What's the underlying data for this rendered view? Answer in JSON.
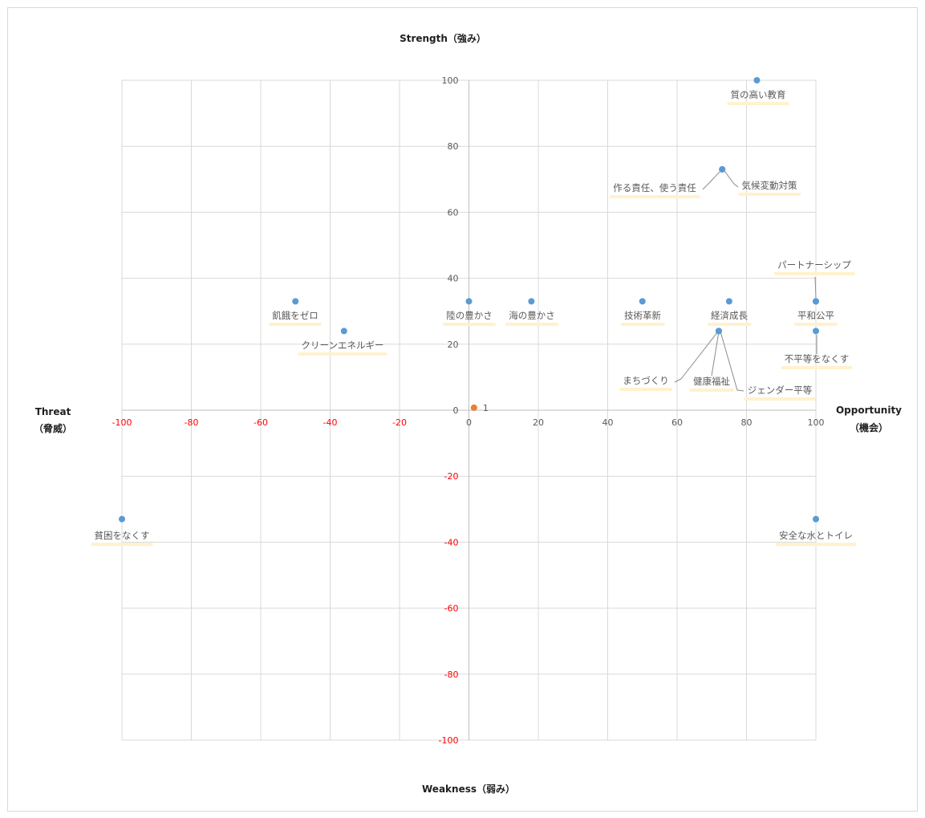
{
  "chart_data": {
    "type": "scatter",
    "axis_titles": {
      "top": "Strength（強み）",
      "bottom": "Weakness（弱み）",
      "left_line1": "Threat",
      "left_line2": "（脅威）",
      "right_line1": "Opportunity",
      "right_line2": "（機会）"
    },
    "xlim": [
      -100,
      100
    ],
    "ylim": [
      -100,
      100
    ],
    "grid": true,
    "x_ticks": [
      -100,
      -80,
      -60,
      -40,
      -20,
      0,
      20,
      40,
      60,
      80,
      100
    ],
    "y_ticks": [
      -100,
      -80,
      -60,
      -40,
      -20,
      0,
      20,
      40,
      60,
      80,
      100
    ],
    "negative_tick_color": "#ff0000",
    "positive_tick_color": "#595959",
    "grid_color": "#d9d9d9",
    "point_color": "#5b9bd5",
    "highlight_color": "#ed7d31",
    "label_underline_color": "#fff2cc",
    "points": [
      {
        "label": "質の高い教育",
        "x": 83,
        "y": 100
      },
      {
        "label": "作る責任、使う責任",
        "x": 73,
        "y": 73
      },
      {
        "label": "気候変動対策",
        "x": 73,
        "y": 73
      },
      {
        "label": "パートナーシップ",
        "x": 100,
        "y": 33
      },
      {
        "label": "平和公平",
        "x": 100,
        "y": 33
      },
      {
        "label": "不平等をなくす",
        "x": 100,
        "y": 24
      },
      {
        "label": "飢餓をゼロ",
        "x": -50,
        "y": 33
      },
      {
        "label": "クリーンエネルギー",
        "x": -36,
        "y": 24
      },
      {
        "label": "陸の豊かさ",
        "x": 0,
        "y": 33
      },
      {
        "label": "海の豊かさ",
        "x": 18,
        "y": 33
      },
      {
        "label": "技術革新",
        "x": 50,
        "y": 33
      },
      {
        "label": "経済成長",
        "x": 75,
        "y": 33
      },
      {
        "label": "まちづくり",
        "x": 72,
        "y": 24
      },
      {
        "label": "健康福祉",
        "x": 72,
        "y": 24
      },
      {
        "label": "ジェンダー平等",
        "x": 72,
        "y": 24
      },
      {
        "label": "貧困をなくす",
        "x": -100,
        "y": -33
      },
      {
        "label": "安全な水とトイレ",
        "x": 100,
        "y": -33
      }
    ],
    "highlight_point": {
      "label": "1",
      "x": 1,
      "y": 1
    }
  }
}
